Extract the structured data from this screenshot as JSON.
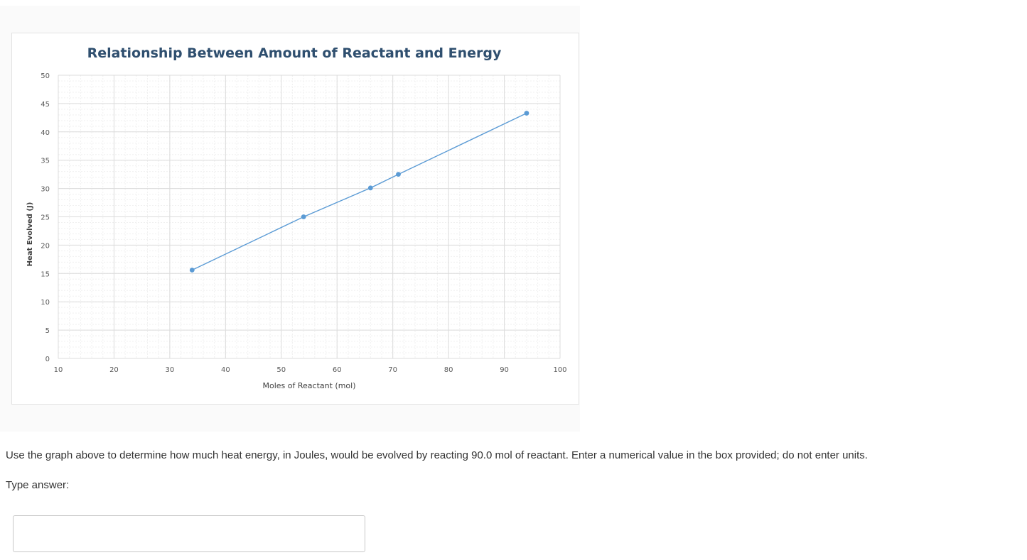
{
  "chart_data": {
    "type": "line",
    "title": "Relationship Between Amount of Reactant and Energy",
    "xlabel": "Moles of Reactant (mol)",
    "ylabel": "Heat Evolved (J)",
    "xlim": [
      10,
      100
    ],
    "ylim": [
      0,
      50
    ],
    "x_ticks": [
      10,
      20,
      30,
      40,
      50,
      60,
      70,
      80,
      90,
      100
    ],
    "y_ticks": [
      0,
      5,
      10,
      15,
      20,
      25,
      30,
      35,
      40,
      45,
      50
    ],
    "grid": true,
    "legend": "none",
    "series": [
      {
        "x": [
          34,
          54,
          66,
          71,
          94
        ],
        "y": [
          15.6,
          25,
          30.1,
          32.5,
          43.3
        ],
        "color": "#5b9bd5"
      }
    ]
  },
  "question": {
    "text": "Use the graph above to determine how much heat energy, in Joules, would be evolved by reacting 90.0 mol of reactant.  Enter a numerical value in the box provided; do not enter units.",
    "answer_label": "Type answer:",
    "answer_value": ""
  }
}
